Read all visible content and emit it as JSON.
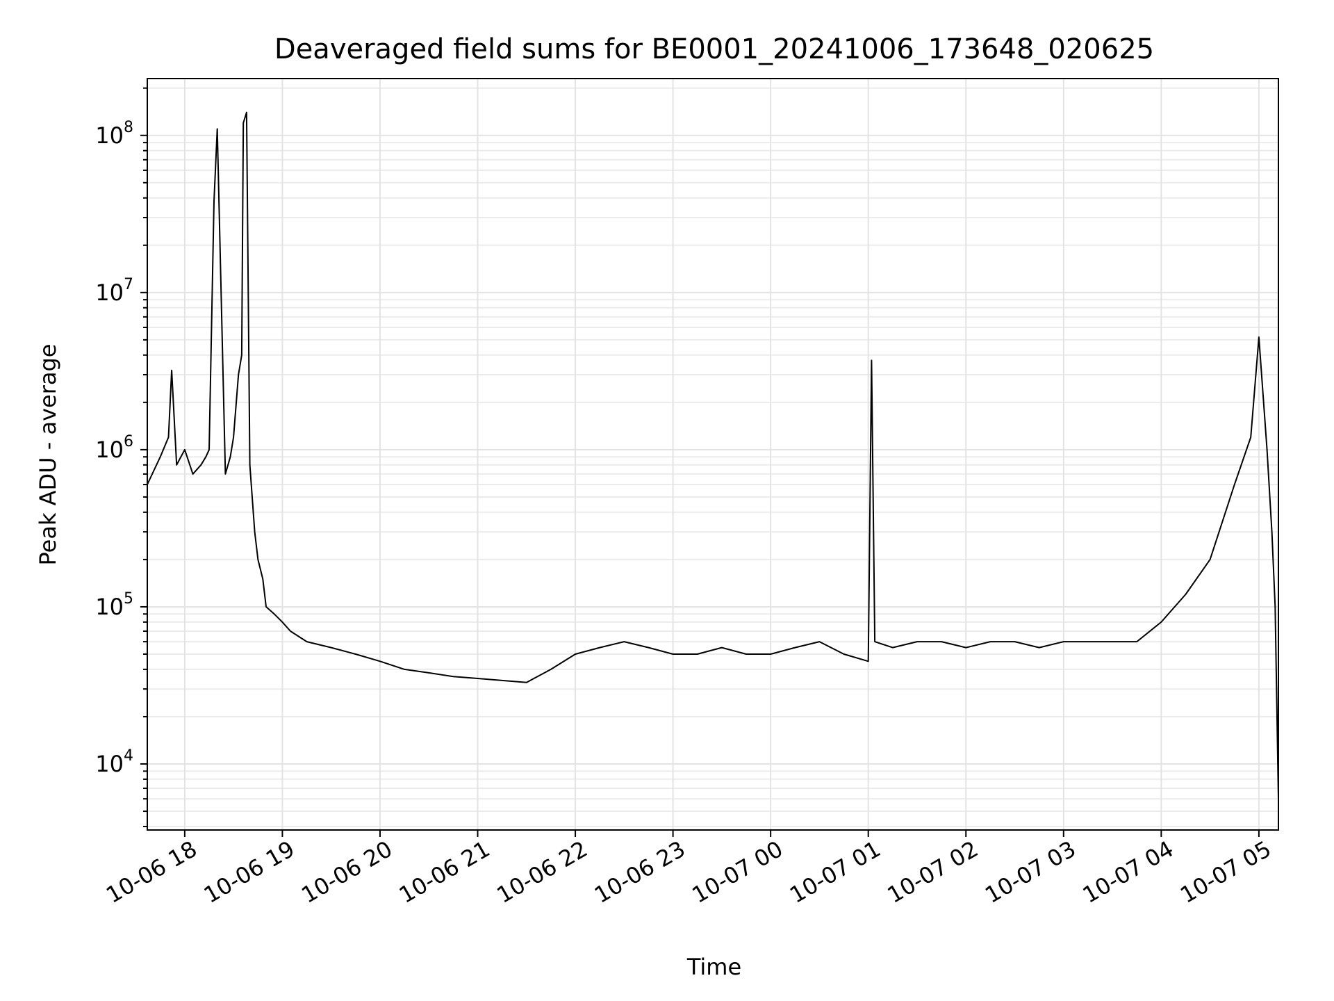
{
  "chart_data": {
    "type": "line",
    "title": "Deaveraged field sums for BE0001_20241006_173648_020625",
    "xlabel": "Time",
    "ylabel": "Peak ADU - average",
    "y_scale": "log",
    "ylim": [
      3800,
      230000000
    ],
    "xlim": [
      "10-06 17:37",
      "10-07 05:12"
    ],
    "grid": "on (major and minor)",
    "line_color": "#000000",
    "x_tick_labels": [
      "10-06 18",
      "10-06 19",
      "10-06 20",
      "10-06 21",
      "10-06 22",
      "10-06 23",
      "10-07 00",
      "10-07 01",
      "10-07 02",
      "10-07 03",
      "10-07 04",
      "10-07 05"
    ],
    "y_ticks": [
      {
        "value": 10000,
        "base": "10",
        "exp": "4"
      },
      {
        "value": 100000,
        "base": "10",
        "exp": "5"
      },
      {
        "value": 1000000,
        "base": "10",
        "exp": "6"
      },
      {
        "value": 10000000,
        "base": "10",
        "exp": "7"
      },
      {
        "value": 100000000,
        "base": "10",
        "exp": "8"
      }
    ],
    "series": [
      {
        "x": [
          "10-06 17:37",
          "10-06 17:45",
          "10-06 17:50",
          "10-06 17:52",
          "10-06 17:55",
          "10-06 18:00",
          "10-06 18:05",
          "10-06 18:10",
          "10-06 18:13",
          "10-06 18:15",
          "10-06 18:18",
          "10-06 18:20",
          "10-06 18:25",
          "10-06 18:28",
          "10-06 18:30",
          "10-06 18:33",
          "10-06 18:35",
          "10-06 18:36",
          "10-06 18:38",
          "10-06 18:40",
          "10-06 18:43",
          "10-06 18:45",
          "10-06 18:48",
          "10-06 18:50",
          "10-06 18:55",
          "10-06 19:00",
          "10-06 19:05",
          "10-06 19:15",
          "10-06 19:30",
          "10-06 19:45",
          "10-06 20:00",
          "10-06 20:15",
          "10-06 20:30",
          "10-06 20:45",
          "10-06 21:00",
          "10-06 21:15",
          "10-06 21:30",
          "10-06 21:45",
          "10-06 22:00",
          "10-06 22:15",
          "10-06 22:30",
          "10-06 22:45",
          "10-06 23:00",
          "10-06 23:15",
          "10-06 23:30",
          "10-06 23:45",
          "10-07 00:00",
          "10-07 00:15",
          "10-07 00:30",
          "10-07 00:45",
          "10-07 01:00",
          "10-07 01:02",
          "10-07 01:04",
          "10-07 01:15",
          "10-07 01:30",
          "10-07 01:45",
          "10-07 02:00",
          "10-07 02:15",
          "10-07 02:30",
          "10-07 02:45",
          "10-07 03:00",
          "10-07 03:15",
          "10-07 03:30",
          "10-07 03:45",
          "10-07 04:00",
          "10-07 04:15",
          "10-07 04:30",
          "10-07 04:45",
          "10-07 04:55",
          "10-07 05:00",
          "10-07 05:05",
          "10-07 05:08",
          "10-07 05:10",
          "10-07 05:12"
        ],
        "y": [
          600000,
          900000,
          1200000,
          3200000,
          800000,
          1000000,
          700000,
          800000,
          900000,
          1000000,
          38000000,
          110000000,
          700000,
          900000,
          1200000,
          3000000,
          4000000,
          120000000,
          140000000,
          800000,
          300000,
          200000,
          150000,
          100000,
          90000,
          80000,
          70000,
          60000,
          55000,
          50000,
          45000,
          40000,
          38000,
          36000,
          35000,
          34000,
          33000,
          40000,
          50000,
          55000,
          60000,
          55000,
          50000,
          50000,
          55000,
          50000,
          50000,
          55000,
          60000,
          50000,
          45000,
          3700000,
          60000,
          55000,
          60000,
          60000,
          55000,
          60000,
          60000,
          55000,
          60000,
          60000,
          60000,
          60000,
          80000,
          120000,
          200000,
          600000,
          1200000,
          5200000,
          1000000,
          300000,
          100000,
          6000
        ]
      }
    ]
  }
}
